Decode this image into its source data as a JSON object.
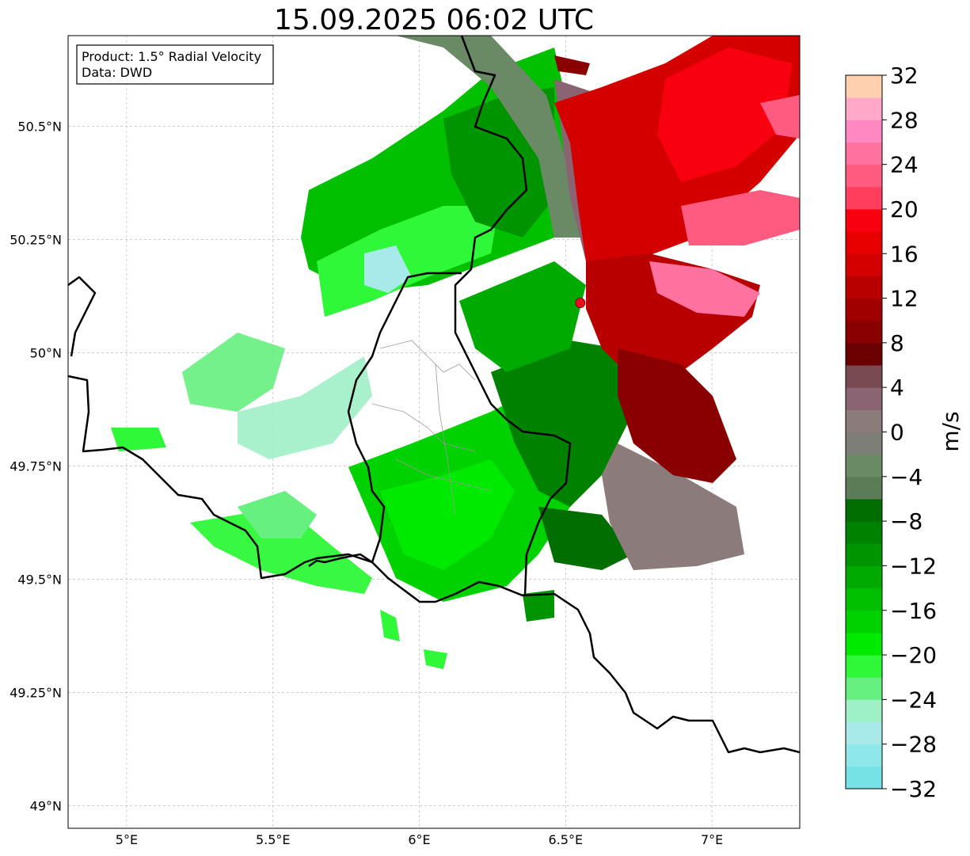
{
  "title": "15.09.2025 06:02 UTC",
  "info_box": {
    "product": "Product: 1.5° Radial Velocity",
    "data": "Data: DWD"
  },
  "map": {
    "lon_ticks": [
      {
        "value": 5.0,
        "label": "5°E"
      },
      {
        "value": 5.5,
        "label": "5.5°E"
      },
      {
        "value": 6.0,
        "label": "6°E"
      },
      {
        "value": 6.5,
        "label": "6.5°E"
      },
      {
        "value": 7.0,
        "label": "7°E"
      }
    ],
    "lat_ticks": [
      {
        "value": 50.5,
        "label": "50.5°N"
      },
      {
        "value": 50.25,
        "label": "50.25°N"
      },
      {
        "value": 50.0,
        "label": "50°N"
      },
      {
        "value": 49.75,
        "label": "49.75°N"
      },
      {
        "value": 49.5,
        "label": "49.5°N"
      },
      {
        "value": 49.25,
        "label": "49.25°N"
      },
      {
        "value": 49.0,
        "label": "49°N"
      }
    ],
    "lon_range": [
      4.8,
      7.3
    ],
    "lat_range": [
      48.95,
      50.7
    ],
    "gridlines": true,
    "radar_site": {
      "lon": 6.55,
      "lat": 50.11,
      "color": "#e8101c"
    }
  },
  "colorbar": {
    "label": "m/s",
    "min": -32,
    "max": 32,
    "ticks": [
      {
        "value": 32,
        "label": "32"
      },
      {
        "value": 28,
        "label": "28"
      },
      {
        "value": 24,
        "label": "24"
      },
      {
        "value": 20,
        "label": "20"
      },
      {
        "value": 16,
        "label": "16"
      },
      {
        "value": 12,
        "label": "12"
      },
      {
        "value": 8,
        "label": "8"
      },
      {
        "value": 4,
        "label": "4"
      },
      {
        "value": 0,
        "label": "0"
      },
      {
        "value": -4,
        "label": "−4"
      },
      {
        "value": -8,
        "label": "−8"
      },
      {
        "value": -12,
        "label": "−12"
      },
      {
        "value": -16,
        "label": "−16"
      },
      {
        "value": -20,
        "label": "−20"
      },
      {
        "value": -24,
        "label": "−24"
      },
      {
        "value": -28,
        "label": "−28"
      },
      {
        "value": -32,
        "label": "−32"
      }
    ],
    "colors": [
      "#76e2e6",
      "#8ee7ea",
      "#a8eaea",
      "#9ef0c6",
      "#66f080",
      "#2ef838",
      "#00ea00",
      "#00d200",
      "#00c000",
      "#00aa00",
      "#009500",
      "#008200",
      "#006e00",
      "#5c7c58",
      "#6a8a66",
      "#7e7e78",
      "#8c7b7b",
      "#8a6472",
      "#7a4a52",
      "#6a0000",
      "#8a0000",
      "#a00000",
      "#b80000",
      "#d40000",
      "#e80000",
      "#f80010",
      "#ff3e5e",
      "#ff5a80",
      "#ff72a0",
      "#ff88c2",
      "#ffa8c8",
      "#ffd0b0"
    ]
  }
}
